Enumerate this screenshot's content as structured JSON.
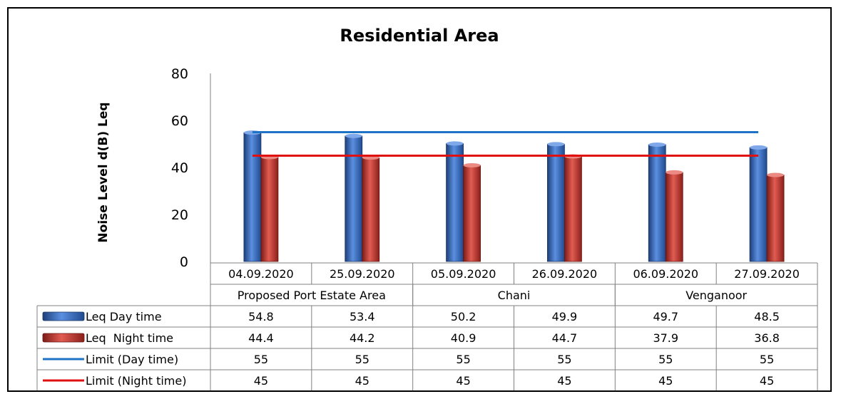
{
  "chart_data": {
    "type": "bar",
    "title": "Residential Area",
    "ylabel": "Noise Level d(B) Leq",
    "ylim": [
      0,
      80
    ],
    "yticks": [
      "0",
      "20",
      "40",
      "60",
      "80"
    ],
    "categories": [
      "04.09.2020",
      "25.09.2020",
      "05.09.2020",
      "26.09.2020",
      "06.09.2020",
      "27.09.2020"
    ],
    "groups": [
      {
        "label": "Proposed Port Estate Area",
        "span": 2
      },
      {
        "label": "Chani",
        "span": 2
      },
      {
        "label": "Venganoor",
        "span": 2
      }
    ],
    "series": [
      {
        "name": "Leq Day time",
        "kind": "bar",
        "color": "#3a6fc2",
        "values": [
          54.8,
          53.4,
          50.2,
          49.9,
          49.7,
          48.5
        ]
      },
      {
        "name": "Leq  Night time",
        "kind": "bar",
        "color": "#c83a33",
        "values": [
          44.4,
          44.2,
          40.9,
          44.7,
          37.9,
          36.8
        ]
      },
      {
        "name": "Limit (Day time)",
        "kind": "line",
        "color": "#1f73c4",
        "values": [
          55,
          55,
          55,
          55,
          55,
          55
        ]
      },
      {
        "name": "Limit (Night time)",
        "kind": "line",
        "color": "#e01010",
        "values": [
          45,
          45,
          45,
          45,
          45,
          45
        ]
      }
    ],
    "value_table": [
      [
        "54.8",
        "53.4",
        "50.2",
        "49.9",
        "49.7",
        "48.5"
      ],
      [
        "44.4",
        "44.2",
        "40.9",
        "44.7",
        "37.9",
        "36.8"
      ],
      [
        "55",
        "55",
        "55",
        "55",
        "55",
        "55"
      ],
      [
        "45",
        "45",
        "45",
        "45",
        "45",
        "45"
      ]
    ],
    "legend": "data-table"
  }
}
